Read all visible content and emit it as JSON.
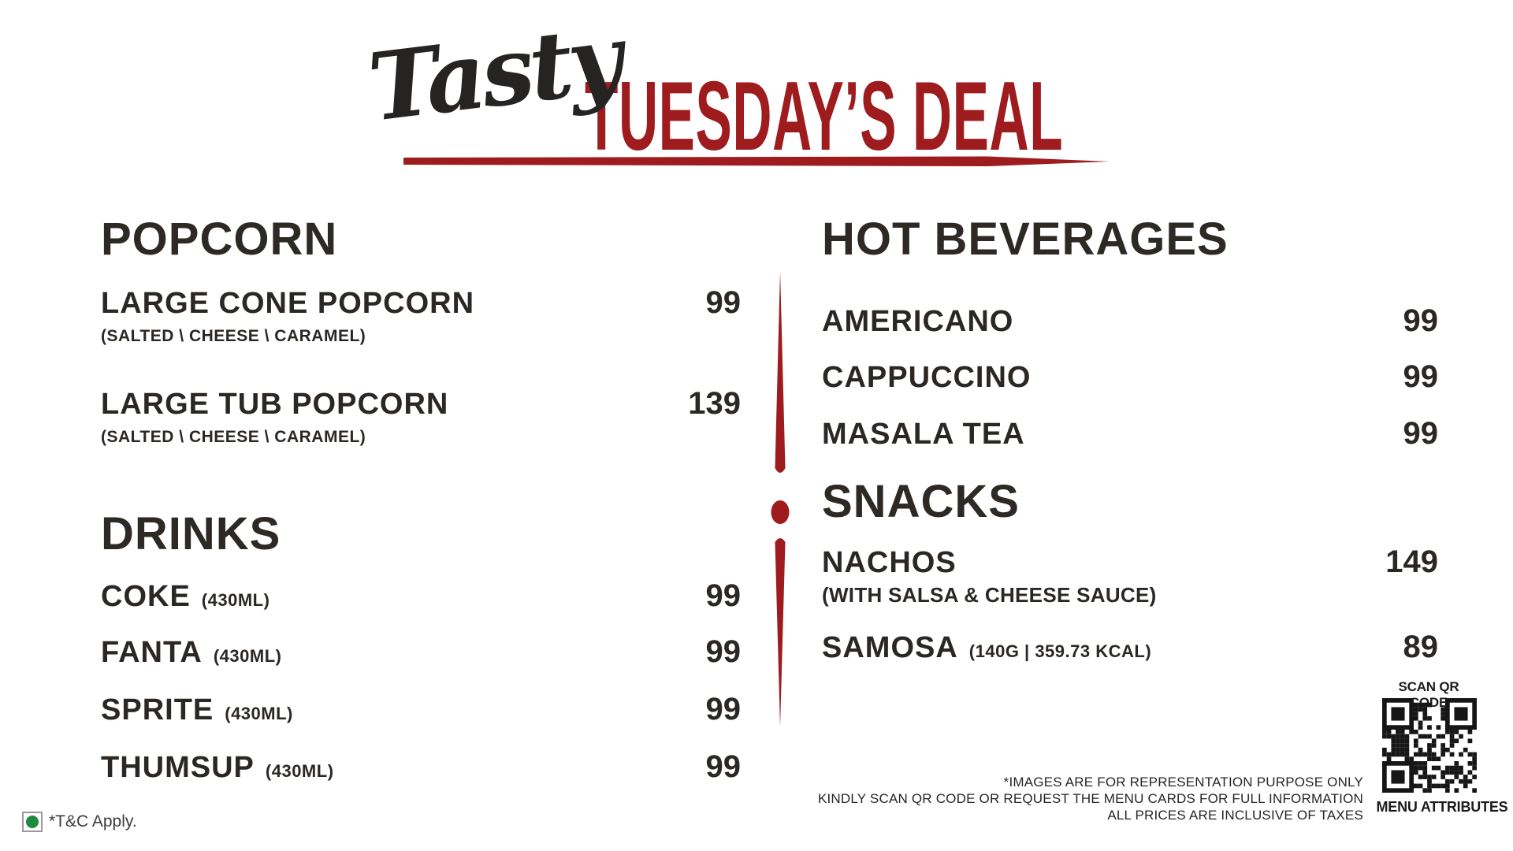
{
  "title": {
    "script": "Tasty",
    "main": "TUESDAY’S DEAL"
  },
  "colors": {
    "accent_red": "#9E1B1E",
    "text_dark": "#2B2724",
    "veg_green": "#1E8A3D",
    "background": "#FFFFFF"
  },
  "sections": [
    {
      "heading": "POPCORN",
      "items": [
        {
          "name": "LARGE CONE POPCORN",
          "subtitle": "(SALTED \\ CHEESE \\ CARAMEL)",
          "price": "99"
        },
        {
          "name": "LARGE TUB POPCORN",
          "subtitle": "(SALTED \\ CHEESE \\ CARAMEL)",
          "price": "139"
        }
      ]
    },
    {
      "heading": "DRINKS",
      "items": [
        {
          "name": "COKE",
          "detail": "(430ML)",
          "price": "99"
        },
        {
          "name": "FANTA",
          "detail": "(430ML)",
          "price": "99"
        },
        {
          "name": "SPRITE",
          "detail": "(430ML)",
          "price": "99"
        },
        {
          "name": "THUMSUP",
          "detail": "(430ML)",
          "price": "99"
        }
      ]
    },
    {
      "heading": "HOT BEVERAGES",
      "items": [
        {
          "name": "AMERICANO",
          "price": "99"
        },
        {
          "name": "CAPPUCCINO",
          "price": "99"
        },
        {
          "name": "MASALA TEA",
          "price": "99"
        }
      ]
    },
    {
      "heading": "SNACKS",
      "items": [
        {
          "name": "NACHOS",
          "subtitle": "(WITH SALSA & CHEESE SAUCE)",
          "price": "149"
        },
        {
          "name": "SAMOSA",
          "detail": "(140G | 359.73 KCAL)",
          "price": "89"
        }
      ]
    }
  ],
  "footer": {
    "tnc": "*T&C Apply.",
    "disclaimers": {
      "line1": "*IMAGES ARE FOR REPRESENTATION PURPOSE ONLY",
      "line2": "KINDLY SCAN QR CODE OR REQUEST THE MENU CARDS FOR FULL INFORMATION",
      "line3": "ALL PRICES ARE INCLUSIVE OF TAXES"
    },
    "qr": {
      "label_top": "SCAN QR CODE",
      "label_bottom": "MENU ATTRIBUTES"
    }
  }
}
